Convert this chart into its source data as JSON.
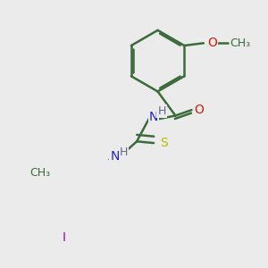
{
  "bg_color": "#ebebeb",
  "bond_color": "#3a6b3a",
  "bond_width": 1.8,
  "atom_colors": {
    "N": "#2222cc",
    "O": "#cc2200",
    "S": "#bbbb00",
    "I": "#aa00aa",
    "H": "#666688",
    "C": "#3a6b3a"
  },
  "font_size": 10,
  "dbo": 0.022
}
